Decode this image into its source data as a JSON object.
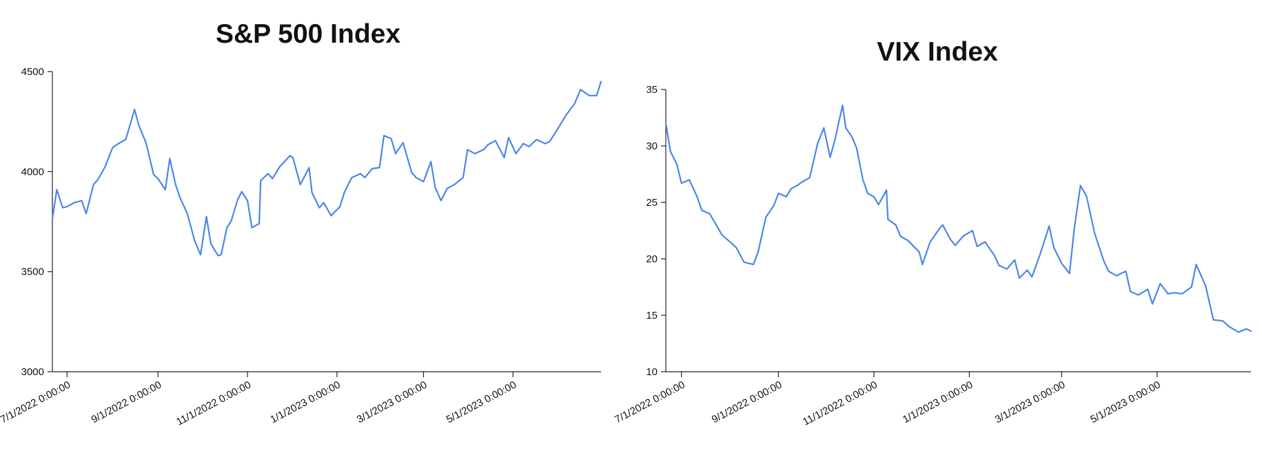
{
  "chart_data": [
    {
      "type": "line",
      "title": "S&P 500 Index",
      "xlabel": "",
      "ylabel": "",
      "x_range": [
        "2022-06-21",
        "2023-06-30"
      ],
      "ylim": [
        3000,
        4500
      ],
      "y_ticks": [
        3000,
        3500,
        4000,
        4500
      ],
      "x_ticks": [
        {
          "date": "2022-07-01",
          "label": "7/1/2022 0:00:00"
        },
        {
          "date": "2022-09-01",
          "label": "9/1/2022 0:00:00"
        },
        {
          "date": "2022-11-01",
          "label": "11/1/2022 0:00:00"
        },
        {
          "date": "2023-01-01",
          "label": "1/1/2023 0:00:00"
        },
        {
          "date": "2023-03-01",
          "label": "3/1/2023 0:00:00"
        },
        {
          "date": "2023-05-01",
          "label": "5/1/2023 0:00:00"
        }
      ],
      "grid": false,
      "line_color": "#4a86e8",
      "series": [
        {
          "x": [
            "2022-06-21",
            "2022-06-24",
            "2022-06-28",
            "2022-07-01",
            "2022-07-06",
            "2022-07-11",
            "2022-07-14",
            "2022-07-19",
            "2022-07-22",
            "2022-07-27",
            "2022-08-01",
            "2022-08-05",
            "2022-08-10",
            "2022-08-16",
            "2022-08-19",
            "2022-08-24",
            "2022-08-29",
            "2022-09-01",
            "2022-09-06",
            "2022-09-09",
            "2022-09-13",
            "2022-09-16",
            "2022-09-21",
            "2022-09-26",
            "2022-09-30",
            "2022-10-04",
            "2022-10-07",
            "2022-10-12",
            "2022-10-14",
            "2022-10-18",
            "2022-10-21",
            "2022-10-25",
            "2022-10-28",
            "2022-11-01",
            "2022-11-04",
            "2022-11-09",
            "2022-11-10",
            "2022-11-15",
            "2022-11-18",
            "2022-11-23",
            "2022-11-30",
            "2022-12-02",
            "2022-12-07",
            "2022-12-13",
            "2022-12-15",
            "2022-12-20",
            "2022-12-23",
            "2022-12-28",
            "2023-01-03",
            "2023-01-06",
            "2023-01-11",
            "2023-01-17",
            "2023-01-20",
            "2023-01-25",
            "2023-01-30",
            "2023-02-02",
            "2023-02-07",
            "2023-02-10",
            "2023-02-15",
            "2023-02-21",
            "2023-02-24",
            "2023-03-01",
            "2023-03-06",
            "2023-03-09",
            "2023-03-13",
            "2023-03-17",
            "2023-03-22",
            "2023-03-28",
            "2023-03-31",
            "2023-04-05",
            "2023-04-11",
            "2023-04-14",
            "2023-04-19",
            "2023-04-25",
            "2023-04-28",
            "2023-05-03",
            "2023-05-08",
            "2023-05-12",
            "2023-05-17",
            "2023-05-23",
            "2023-05-26",
            "2023-06-01",
            "2023-06-06",
            "2023-06-12",
            "2023-06-16",
            "2023-06-22",
            "2023-06-27",
            "2023-06-30"
          ],
          "y": [
            3765,
            3910,
            3820,
            3825,
            3845,
            3855,
            3790,
            3935,
            3960,
            4025,
            4120,
            4140,
            4160,
            4310,
            4230,
            4140,
            3985,
            3965,
            3910,
            4065,
            3935,
            3870,
            3790,
            3655,
            3585,
            3775,
            3640,
            3580,
            3585,
            3720,
            3755,
            3855,
            3900,
            3855,
            3720,
            3740,
            3955,
            3990,
            3965,
            4025,
            4080,
            4070,
            3935,
            4020,
            3895,
            3820,
            3845,
            3780,
            3825,
            3895,
            3970,
            3990,
            3970,
            4015,
            4020,
            4180,
            4165,
            4090,
            4145,
            3995,
            3970,
            3950,
            4050,
            3920,
            3855,
            3915,
            3935,
            3970,
            4110,
            4090,
            4110,
            4135,
            4155,
            4070,
            4170,
            4090,
            4140,
            4125,
            4160,
            4140,
            4150,
            4220,
            4280,
            4340,
            4410,
            4380,
            4380,
            4450
          ]
        }
      ]
    },
    {
      "type": "line",
      "title": "VIX Index",
      "xlabel": "",
      "ylabel": "",
      "x_range": [
        "2022-06-21",
        "2023-06-30"
      ],
      "ylim": [
        10,
        35
      ],
      "y_ticks": [
        10,
        15,
        20,
        25,
        30,
        35
      ],
      "x_ticks": [
        {
          "date": "2022-07-01",
          "label": "7/1/2022 0:00:00"
        },
        {
          "date": "2022-09-01",
          "label": "9/1/2022 0:00:00"
        },
        {
          "date": "2022-11-01",
          "label": "11/1/2022 0:00:00"
        },
        {
          "date": "2023-01-01",
          "label": "1/1/2023 0:00:00"
        },
        {
          "date": "2023-03-01",
          "label": "3/1/2023 0:00:00"
        },
        {
          "date": "2023-05-01",
          "label": "5/1/2023 0:00:00"
        }
      ],
      "grid": false,
      "line_color": "#4a86e8",
      "series": [
        {
          "x": [
            "2022-06-21",
            "2022-06-24",
            "2022-06-28",
            "2022-07-01",
            "2022-07-06",
            "2022-07-11",
            "2022-07-14",
            "2022-07-19",
            "2022-07-22",
            "2022-07-27",
            "2022-08-01",
            "2022-08-05",
            "2022-08-10",
            "2022-08-16",
            "2022-08-19",
            "2022-08-24",
            "2022-08-29",
            "2022-09-01",
            "2022-09-06",
            "2022-09-09",
            "2022-09-13",
            "2022-09-16",
            "2022-09-21",
            "2022-09-26",
            "2022-09-30",
            "2022-10-04",
            "2022-10-07",
            "2022-10-12",
            "2022-10-14",
            "2022-10-18",
            "2022-10-21",
            "2022-10-25",
            "2022-10-28",
            "2022-11-01",
            "2022-11-04",
            "2022-11-09",
            "2022-11-10",
            "2022-11-15",
            "2022-11-18",
            "2022-11-23",
            "2022-11-30",
            "2022-12-02",
            "2022-12-07",
            "2022-12-13",
            "2022-12-15",
            "2022-12-20",
            "2022-12-23",
            "2022-12-28",
            "2023-01-03",
            "2023-01-06",
            "2023-01-11",
            "2023-01-17",
            "2023-01-20",
            "2023-01-25",
            "2023-01-30",
            "2023-02-02",
            "2023-02-07",
            "2023-02-10",
            "2023-02-15",
            "2023-02-21",
            "2023-02-24",
            "2023-03-01",
            "2023-03-06",
            "2023-03-09",
            "2023-03-13",
            "2023-03-17",
            "2023-03-22",
            "2023-03-28",
            "2023-03-31",
            "2023-04-05",
            "2023-04-11",
            "2023-04-14",
            "2023-04-19",
            "2023-04-25",
            "2023-04-28",
            "2023-05-03",
            "2023-05-08",
            "2023-05-12",
            "2023-05-17",
            "2023-05-23",
            "2023-05-26",
            "2023-06-01",
            "2023-06-06",
            "2023-06-12",
            "2023-06-16",
            "2023-06-22",
            "2023-06-27",
            "2023-06-30"
          ],
          "y": [
            32,
            29.5,
            28.4,
            26.7,
            27.0,
            25.5,
            24.3,
            24.0,
            23.3,
            22.1,
            21.5,
            21.0,
            19.7,
            19.5,
            20.6,
            23.7,
            24.7,
            25.8,
            25.5,
            26.2,
            26.5,
            26.8,
            27.2,
            30.2,
            31.6,
            29.0,
            30.5,
            33.6,
            31.6,
            30.8,
            29.8,
            27.0,
            25.8,
            25.5,
            24.8,
            26.1,
            23.5,
            23.0,
            22.0,
            21.6,
            20.6,
            19.5,
            21.5,
            22.7,
            23.0,
            21.7,
            21.2,
            22.0,
            22.5,
            21.1,
            21.5,
            20.3,
            19.4,
            19.1,
            19.9,
            18.3,
            19.0,
            18.4,
            20.3,
            22.9,
            21.0,
            19.6,
            18.7,
            22.6,
            26.5,
            25.5,
            22.3,
            19.8,
            18.9,
            18.5,
            18.9,
            17.1,
            16.8,
            17.3,
            16.0,
            17.8,
            16.9,
            17.0,
            16.9,
            17.5,
            19.5,
            17.6,
            14.6,
            14.5,
            14.0,
            13.5,
            13.8,
            13.6
          ]
        }
      ]
    }
  ]
}
